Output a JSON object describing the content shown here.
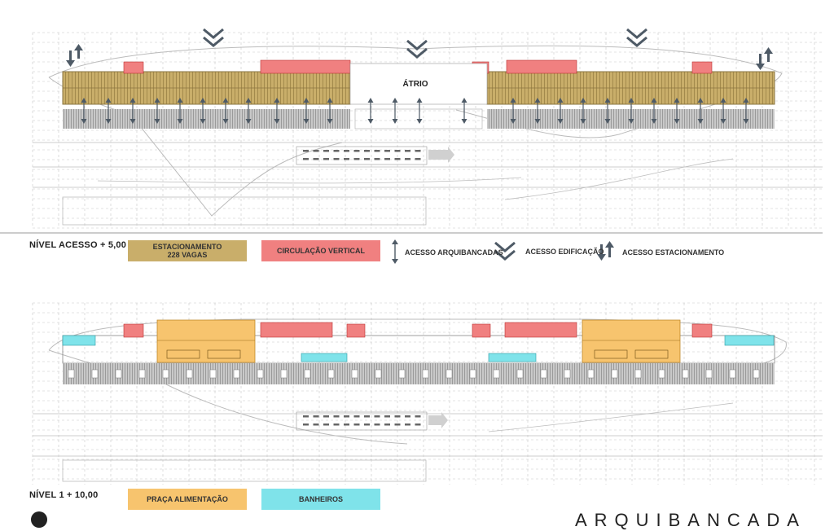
{
  "plan_top": {
    "atrium_label": "ÁTRIO"
  },
  "legend_top": {
    "level": "NÍVEL ACESSO + 5,00",
    "parking_line1": "ESTACIONAMENTO",
    "parking_line2": "228 VAGAS",
    "vertical_circulation": "CIRCULAÇÃO VERTICAL",
    "stands_access": "ACESSO ARQUIBANCADAS",
    "building_access": "ACESSO EDIFICAÇÃO",
    "parking_access": "ACESSO ESTACIONAMENTO"
  },
  "legend_bottom": {
    "level": "NÍVEL 1  + 10,00",
    "food_court": "PRAÇA ALIMENTAÇÃO",
    "restrooms": "BANHEIROS"
  },
  "footer": {
    "title": "ARQUIBANCADA"
  },
  "colors": {
    "parking": "#c9ae6a",
    "vertical_circulation": "#f08080",
    "food_court": "#f7c46e",
    "restrooms": "#7fe3ea",
    "icons": "#4e5a66",
    "stands": "#c8c8c8"
  }
}
